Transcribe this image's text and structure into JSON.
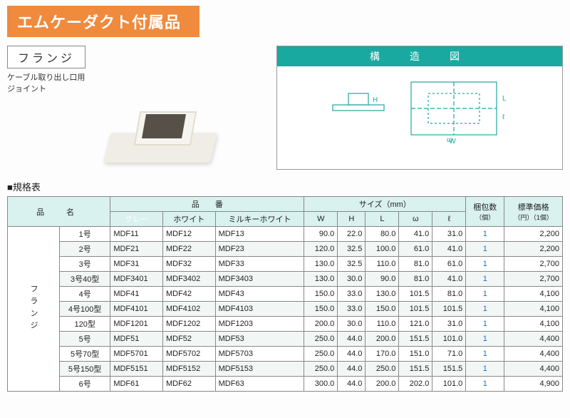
{
  "title": "エムケーダクト付属品",
  "subtitle": "フランジ",
  "subtitle_desc_l1": "ケーブル取り出し口用",
  "subtitle_desc_l2": "ジョイント",
  "struct_header": "構　造　図",
  "struct_labels": {
    "H": "H",
    "W": "W",
    "L": "L",
    "l": "ℓ",
    "omega": "ω"
  },
  "spec_title": "■規格表",
  "colors": {
    "title_bg": "#f08a3c",
    "teal": "#1aa9a0",
    "header_bg": "#d9f1ef",
    "gray_color_cell": "#8fa0b5",
    "pack_text": "#1a6fbf",
    "border": "#888888",
    "page_bg": "#fdfdfd"
  },
  "headers": {
    "name": "品　名",
    "code": "品　　番",
    "size": "サイズ（mm）",
    "pack": "梱包数",
    "pack_unit": "（個）",
    "price": "標準価格",
    "price_unit": "（円）（1個）",
    "color_gray": "グレー",
    "color_white": "ホワイト",
    "color_milky": "ミルキーホワイト",
    "W": "W",
    "H": "H",
    "L": "L",
    "omega": "ω",
    "l": "ℓ"
  },
  "group_label": "フランジ",
  "col_widths": {
    "rowlabel": 22,
    "name": 74,
    "code": 92,
    "size": 44,
    "pack": 44,
    "price": 66
  },
  "rows": [
    {
      "name": "1号",
      "g": "MDF11",
      "w": "MDF12",
      "m": "MDF13",
      "W": "90.0",
      "H": "22.0",
      "L": "80.0",
      "o": "41.0",
      "l": "31.0",
      "pk": "1",
      "pr": "2,200"
    },
    {
      "name": "2号",
      "g": "MDF21",
      "w": "MDF22",
      "m": "MDF23",
      "W": "120.0",
      "H": "32.5",
      "L": "100.0",
      "o": "61.0",
      "l": "41.0",
      "pk": "1",
      "pr": "2,200"
    },
    {
      "name": "3号",
      "g": "MDF31",
      "w": "MDF32",
      "m": "MDF33",
      "W": "130.0",
      "H": "32.5",
      "L": "110.0",
      "o": "81.0",
      "l": "61.0",
      "pk": "1",
      "pr": "2,700"
    },
    {
      "name": "3号40型",
      "g": "MDF3401",
      "w": "MDF3402",
      "m": "MDF3403",
      "W": "130.0",
      "H": "30.0",
      "L": "90.0",
      "o": "81.0",
      "l": "41.0",
      "pk": "1",
      "pr": "2,700"
    },
    {
      "name": "4号",
      "g": "MDF41",
      "w": "MDF42",
      "m": "MDF43",
      "W": "150.0",
      "H": "33.0",
      "L": "130.0",
      "o": "101.5",
      "l": "81.0",
      "pk": "1",
      "pr": "4,100"
    },
    {
      "name": "4号100型",
      "g": "MDF4101",
      "w": "MDF4102",
      "m": "MDF4103",
      "W": "150.0",
      "H": "33.0",
      "L": "150.0",
      "o": "101.5",
      "l": "101.5",
      "pk": "1",
      "pr": "4,100"
    },
    {
      "name": "120型",
      "g": "MDF1201",
      "w": "MDF1202",
      "m": "MDF1203",
      "W": "200.0",
      "H": "30.0",
      "L": "110.0",
      "o": "121.0",
      "l": "31.0",
      "pk": "1",
      "pr": "4,100"
    },
    {
      "name": "5号",
      "g": "MDF51",
      "w": "MDF52",
      "m": "MDF53",
      "W": "250.0",
      "H": "44.0",
      "L": "200.0",
      "o": "151.5",
      "l": "101.0",
      "pk": "1",
      "pr": "4,400"
    },
    {
      "name": "5号70型",
      "g": "MDF5701",
      "w": "MDF5702",
      "m": "MDF5703",
      "W": "250.0",
      "H": "44.0",
      "L": "170.0",
      "o": "151.0",
      "l": "71.0",
      "pk": "1",
      "pr": "4,400"
    },
    {
      "name": "5号150型",
      "g": "MDF5151",
      "w": "MDF5152",
      "m": "MDF5153",
      "W": "250.0",
      "H": "44.0",
      "L": "250.0",
      "o": "151.5",
      "l": "151.5",
      "pk": "1",
      "pr": "4,400"
    },
    {
      "name": "6号",
      "g": "MDF61",
      "w": "MDF62",
      "m": "MDF63",
      "W": "300.0",
      "H": "44.0",
      "L": "200.0",
      "o": "202.0",
      "l": "101.0",
      "pk": "1",
      "pr": "4,900"
    }
  ]
}
